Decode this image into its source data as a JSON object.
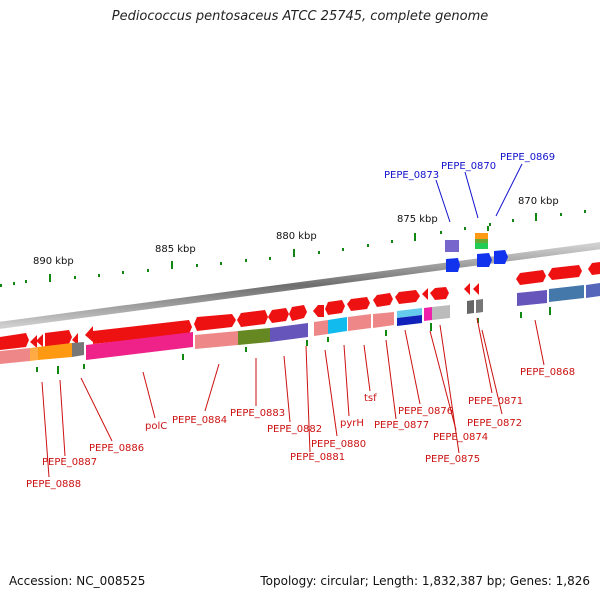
{
  "title": "Pediococcus pentosaceus ATCC 25745, complete genome",
  "footer": {
    "accession": "Accession: NC_008525",
    "summary": "Topology: circular; Length: 1,832,387 bp; Genes: 1,826"
  },
  "scale_labels": [
    "890 kbp",
    "885 kbp",
    "880 kbp",
    "875 kbp",
    "870 kbp"
  ],
  "colors": {
    "forward_gene": "#ee1111",
    "pointer_red": "#cc1111",
    "pointer_blue": "#1111cc",
    "backbone": "#888888",
    "tick": "#118811"
  },
  "blue_labels": [
    "PEPE_0873",
    "PEPE_0870",
    "PEPE_0869"
  ],
  "red_labels": [
    "PEPE_0868",
    "PEPE_0871",
    "PEPE_0872",
    "PEPE_0874",
    "PEPE_0875",
    "PEPE_0876",
    "PEPE_0877",
    "tsf",
    "pyrH",
    "PEPE_0880",
    "PEPE_0881",
    "PEPE_0882",
    "PEPE_0883",
    "PEPE_0884",
    "polC",
    "PEPE_0886",
    "PEPE_0887",
    "PEPE_0888"
  ]
}
